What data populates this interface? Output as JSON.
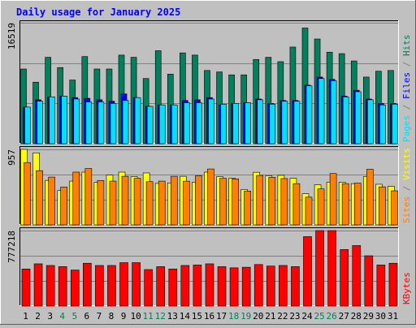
{
  "chart_data": {
    "title": "Daily usage for January 2025",
    "type": "bar",
    "days": [
      "1",
      "2",
      "3",
      "4",
      "5",
      "6",
      "7",
      "8",
      "9",
      "10",
      "11",
      "12",
      "13",
      "14",
      "15",
      "16",
      "17",
      "18",
      "19",
      "20",
      "21",
      "22",
      "23",
      "24",
      "25",
      "26",
      "27",
      "28",
      "29",
      "30",
      "31"
    ],
    "weekend_days": [
      "4",
      "5",
      "11",
      "12",
      "18",
      "19",
      "25",
      "26"
    ],
    "colors": {
      "hits": "#00805c",
      "files": "#0000ff",
      "pages": "#00e0ff",
      "visits": "#ffff00",
      "sites": "#ff8000",
      "kbytes": "#ff0000",
      "title": "#0000ff",
      "weekday_label": "#000000",
      "weekend_label": "#00805c"
    },
    "panels": [
      {
        "key": "top",
        "ymax": 16519,
        "ymax_label": "16519",
        "series": [
          {
            "name": "Hits",
            "values": [
              10200,
              8400,
              11800,
              10400,
              8700,
              11900,
              10200,
              10200,
              12100,
              11800,
              8900,
              12700,
              9500,
              12400,
              12100,
              10000,
              9800,
              9400,
              9400,
              11500,
              11800,
              11200,
              13200,
              15800,
              14300,
              12500,
              12300,
              11300,
              9100,
              9900,
              10000
            ]
          },
          {
            "name": "Files",
            "values": [
              5000,
              6000,
              6400,
              6500,
              6300,
              6200,
              6000,
              5800,
              6800,
              6300,
              5100,
              5300,
              5300,
              5900,
              6000,
              6300,
              5300,
              5500,
              5600,
              6100,
              5500,
              5900,
              5900,
              8000,
              9100,
              8800,
              6500,
              7300,
              6100,
              5500,
              5500
            ]
          },
          {
            "name": "Pages",
            "values": [
              5000,
              5800,
              6400,
              6500,
              6100,
              5700,
              5700,
              5500,
              5900,
              6300,
              5100,
              5300,
              5300,
              5600,
              5600,
              6100,
              5400,
              5500,
              5600,
              6000,
              5400,
              5800,
              5800,
              7900,
              8900,
              8600,
              6400,
              7100,
              6000,
              5300,
              5400
            ]
          }
        ],
        "legend": [
          "Pages",
          "Files",
          "Hits"
        ]
      },
      {
        "key": "mid",
        "ymax": 957,
        "ymax_label": "957",
        "series": [
          {
            "name": "Visits",
            "values": [
              957,
              913,
              564,
              435,
              555,
              669,
              538,
              631,
              669,
              612,
              659,
              526,
              532,
              616,
              541,
              669,
              612,
              591,
              448,
              667,
              623,
              628,
              590,
              395,
              508,
              541,
              541,
              523,
              612,
              515,
              489
            ]
          },
          {
            "name": "Sites",
            "values": [
              790,
              687,
              606,
              480,
              669,
              715,
              563,
              555,
              616,
              591,
              548,
              555,
              616,
              554,
              623,
              709,
              591,
              583,
              428,
              627,
              603,
              587,
              523,
              352,
              456,
              651,
              523,
              530,
              705,
              482,
              432
            ]
          }
        ],
        "legend": [
          "Sites",
          "/",
          "Visits"
        ]
      },
      {
        "key": "bottom",
        "ymax": 777218,
        "ymax_label": "777218",
        "series": [
          {
            "name": "KBytes",
            "values": [
              382000,
              435000,
              418000,
              406000,
              371000,
              441000,
              418000,
              418000,
              447000,
              447000,
              376000,
              406000,
              382000,
              418000,
              423000,
              435000,
              406000,
              394000,
              400000,
              428000,
              412000,
              418000,
              406000,
              715000,
              777218,
              777218,
              582000,
              623000,
              518000,
              423000,
              441000
            ]
          }
        ],
        "legend": [
          "KBytes"
        ]
      }
    ]
  }
}
